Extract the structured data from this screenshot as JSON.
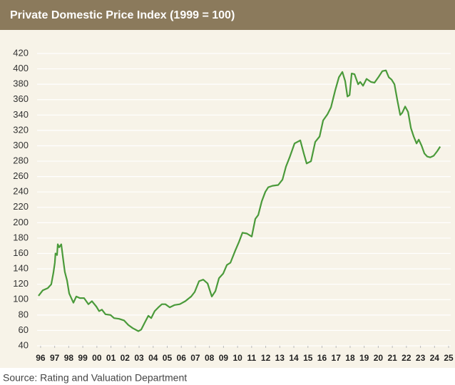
{
  "chart_data": {
    "type": "line",
    "title": "Private Domestic Price Index (1999 = 100)",
    "source": "Source: Rating and Valuation Department",
    "x": [
      1995.85,
      1996.15,
      1996.51,
      1996.76,
      1996.91,
      1997.01,
      1997.06,
      1997.17,
      1997.22,
      1997.32,
      1997.47,
      1997.62,
      1997.72,
      1997.88,
      1998.03,
      1998.33,
      1998.54,
      1998.79,
      1999.09,
      1999.4,
      1999.65,
      1999.96,
      2000.16,
      2000.36,
      2000.61,
      2000.97,
      2001.22,
      2001.58,
      2001.93,
      2002.24,
      2002.54,
      2002.95,
      2003.15,
      2003.4,
      2003.66,
      2003.86,
      2004.11,
      2004.37,
      2004.62,
      2004.87,
      2005.18,
      2005.53,
      2005.89,
      2006.29,
      2006.7,
      2006.95,
      2007.26,
      2007.56,
      2007.87,
      2008.17,
      2008.42,
      2008.68,
      2008.98,
      2009.24,
      2009.49,
      2009.84,
      2010.1,
      2010.35,
      2010.66,
      2011.01,
      2011.26,
      2011.47,
      2011.72,
      2011.97,
      2012.18,
      2012.48,
      2012.89,
      2013.19,
      2013.44,
      2013.7,
      2014.05,
      2014.46,
      2014.71,
      2014.91,
      2015.22,
      2015.52,
      2015.83,
      2016.08,
      2016.39,
      2016.64,
      2016.94,
      2017.2,
      2017.45,
      2017.65,
      2017.81,
      2017.96,
      2018.11,
      2018.31,
      2018.57,
      2018.72,
      2018.92,
      2019.17,
      2019.48,
      2019.73,
      2020.04,
      2020.29,
      2020.54,
      2020.75,
      2020.95,
      2021.15,
      2021.36,
      2021.56,
      2021.71,
      2021.91,
      2022.12,
      2022.32,
      2022.52,
      2022.72,
      2022.88,
      2023.08,
      2023.28,
      2023.48,
      2023.69,
      2023.94,
      2024.19,
      2024.4
    ],
    "series": [
      {
        "name": "Private Domestic Price Index",
        "color": "#4a9a3a",
        "values": [
          105,
          112,
          115,
          120,
          135,
          148,
          160,
          158,
          172,
          168,
          172,
          150,
          136,
          125,
          108,
          96,
          104,
          102,
          102,
          94,
          98,
          91,
          85,
          87,
          81,
          80,
          76,
          75,
          73,
          67,
          63,
          59,
          61,
          70,
          79,
          76,
          85,
          90,
          94,
          94,
          90,
          93,
          94,
          98,
          104,
          110,
          124,
          126,
          121,
          104,
          111,
          128,
          134,
          145,
          148,
          164,
          175,
          187,
          186,
          182,
          205,
          210,
          228,
          240,
          246,
          248,
          249,
          256,
          273,
          285,
          303,
          307,
          290,
          277,
          280,
          305,
          312,
          333,
          341,
          350,
          372,
          389,
          396,
          384,
          364,
          366,
          394,
          393,
          380,
          383,
          378,
          387,
          383,
          382,
          390,
          397,
          398,
          389,
          386,
          380,
          359,
          340,
          343,
          351,
          344,
          323,
          312,
          303,
          308,
          300,
          290,
          286,
          285,
          287,
          293,
          299
        ]
      }
    ],
    "xlim": [
      1995.75,
      2025.15
    ],
    "xticks": [
      {
        "value": 1996,
        "label": "96"
      },
      {
        "value": 1997,
        "label": "97"
      },
      {
        "value": 1998,
        "label": "98"
      },
      {
        "value": 1999,
        "label": "99"
      },
      {
        "value": 2000,
        "label": "00"
      },
      {
        "value": 2001,
        "label": "01"
      },
      {
        "value": 2002,
        "label": "02"
      },
      {
        "value": 2003,
        "label": "03"
      },
      {
        "value": 2004,
        "label": "04"
      },
      {
        "value": 2005,
        "label": "05"
      },
      {
        "value": 2006,
        "label": "06"
      },
      {
        "value": 2007,
        "label": "07"
      },
      {
        "value": 2008,
        "label": "08"
      },
      {
        "value": 2009,
        "label": "09"
      },
      {
        "value": 2010,
        "label": "10"
      },
      {
        "value": 2011,
        "label": "11"
      },
      {
        "value": 2012,
        "label": "12"
      },
      {
        "value": 2013,
        "label": "13"
      },
      {
        "value": 2014,
        "label": "14"
      },
      {
        "value": 2015,
        "label": "15"
      },
      {
        "value": 2016,
        "label": "16"
      },
      {
        "value": 2017,
        "label": "17"
      },
      {
        "value": 2018,
        "label": "18"
      },
      {
        "value": 2019,
        "label": "19"
      },
      {
        "value": 2020,
        "label": "20"
      },
      {
        "value": 2021,
        "label": "21"
      },
      {
        "value": 2022,
        "label": "22"
      },
      {
        "value": 2023,
        "label": "23"
      },
      {
        "value": 2024,
        "label": "24"
      },
      {
        "value": 2025,
        "label": "25"
      }
    ],
    "ylim": [
      40,
      420
    ],
    "yticks": [
      40,
      60,
      80,
      100,
      120,
      140,
      160,
      180,
      200,
      220,
      240,
      260,
      280,
      300,
      320,
      340,
      360,
      380,
      400,
      420
    ],
    "grid": true
  }
}
